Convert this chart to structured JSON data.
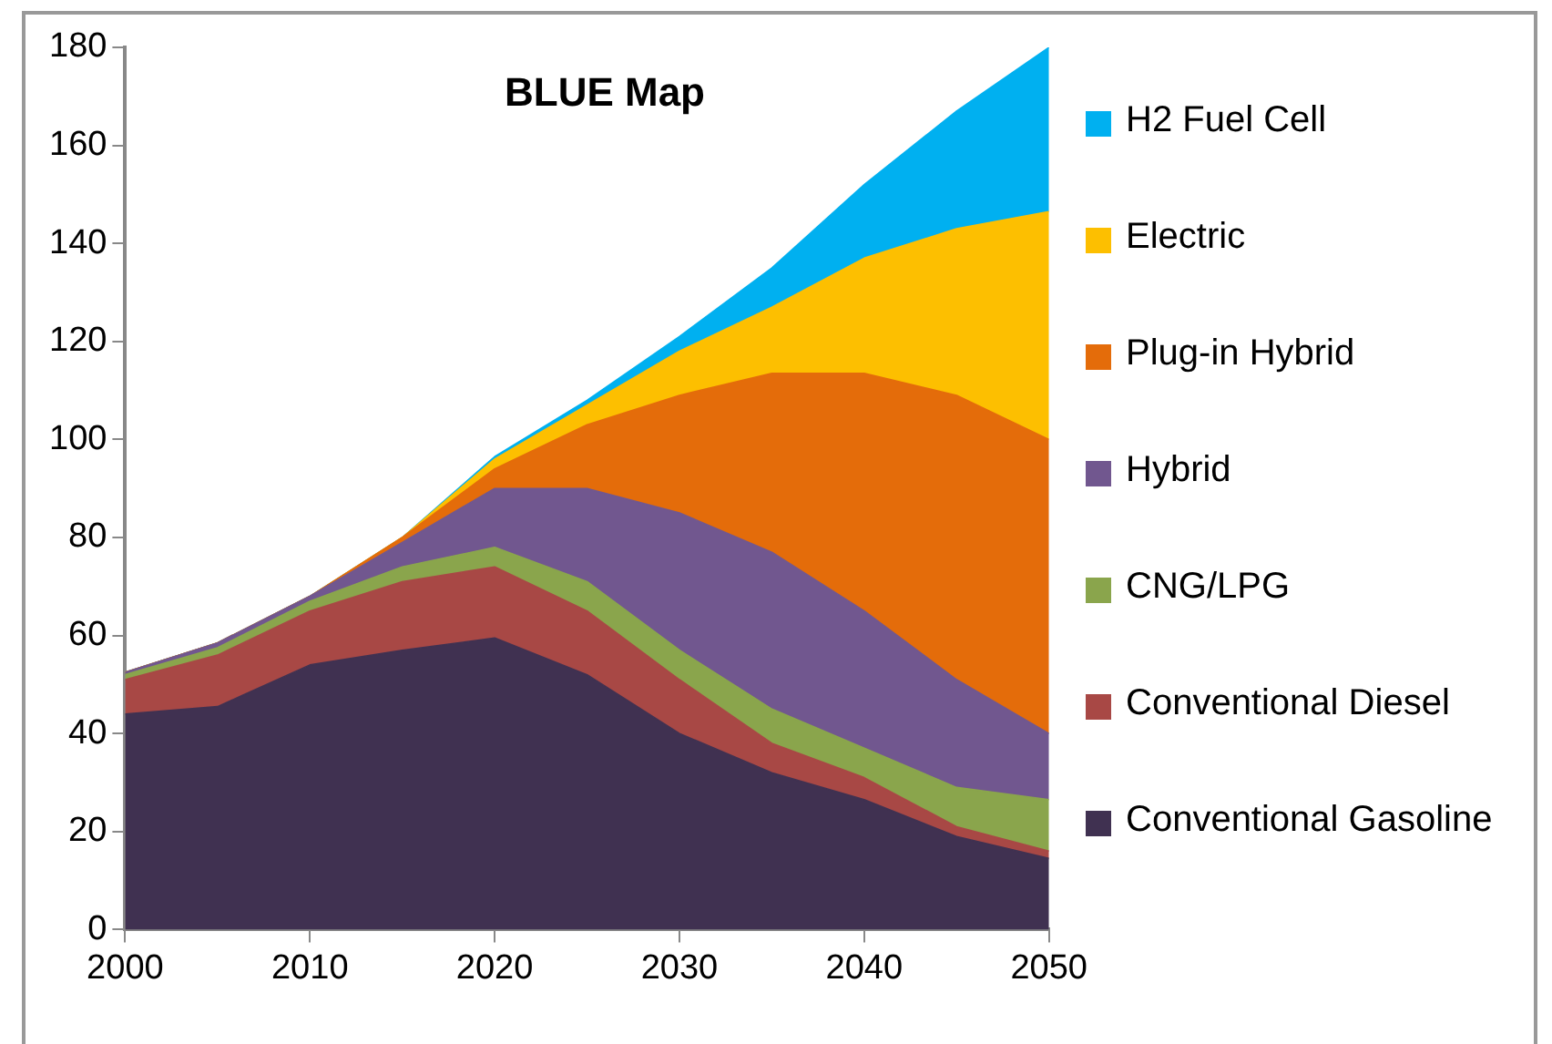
{
  "chart_data": {
    "type": "area",
    "title": "BLUE Map",
    "stacked": true,
    "x": [
      2000,
      2005,
      2010,
      2015,
      2020,
      2025,
      2030,
      2035,
      2040,
      2045,
      2050
    ],
    "xlim": [
      2000,
      2050
    ],
    "xticks": [
      2000,
      2010,
      2020,
      2030,
      2040,
      2050
    ],
    "ylim": [
      0,
      180
    ],
    "yticks": [
      0,
      20,
      40,
      60,
      80,
      100,
      120,
      140,
      160,
      180
    ],
    "grid": false,
    "legend": "right",
    "series": [
      {
        "name": "Conventional Gasoline",
        "color": "#403151",
        "values": [
          44,
          45.5,
          54,
          57,
          59.5,
          52,
          40,
          32,
          26.5,
          19,
          14.5
        ]
      },
      {
        "name": "Conventional Diesel",
        "color": "#a84845",
        "values": [
          7,
          10.5,
          11,
          14,
          14.5,
          13,
          11,
          6,
          4.5,
          2,
          1.5
        ]
      },
      {
        "name": "CNG/LPG",
        "color": "#8aa54c",
        "values": [
          1,
          1.5,
          2,
          3,
          4,
          6,
          6,
          7,
          6,
          8,
          10.5
        ]
      },
      {
        "name": "Hybrid",
        "color": "#71578f",
        "values": [
          0.5,
          1,
          1,
          5,
          12,
          19,
          28,
          32,
          28,
          22,
          13.5
        ]
      },
      {
        "name": "Plug-in Hybrid",
        "color": "#e46c0a",
        "values": [
          0,
          0,
          0,
          1,
          4,
          13,
          24,
          36.5,
          48.5,
          58,
          60
        ]
      },
      {
        "name": "Electric",
        "color": "#fdbf00",
        "values": [
          0,
          0,
          0,
          0,
          2,
          4,
          9,
          13.5,
          23.5,
          34,
          46.5
        ]
      },
      {
        "name": "H2 Fuel Cell",
        "color": "#00b0f0",
        "values": [
          0,
          0,
          0,
          0,
          0.5,
          1,
          3,
          8,
          15,
          24,
          33.5
        ]
      }
    ]
  }
}
